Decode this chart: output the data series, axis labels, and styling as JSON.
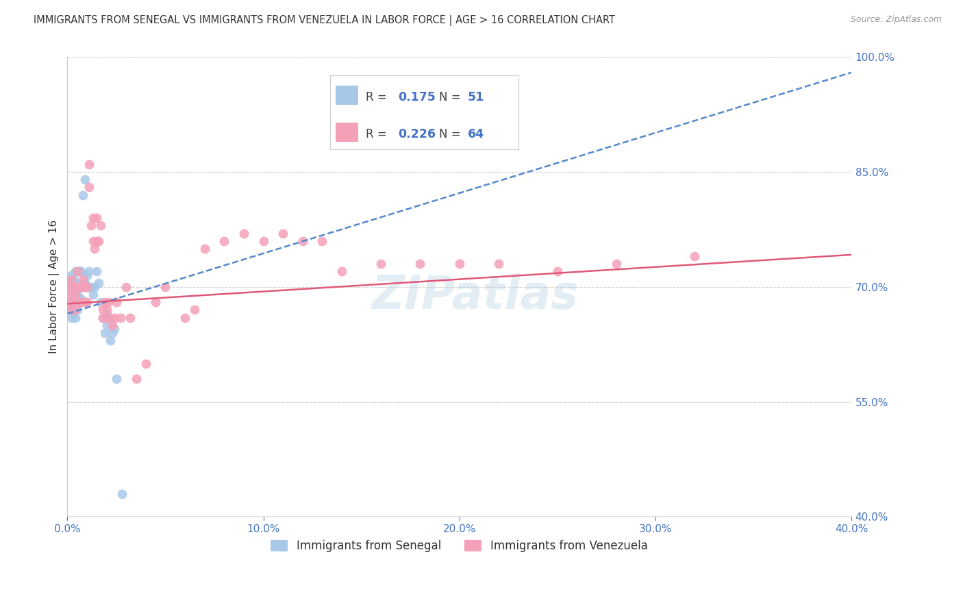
{
  "title": "IMMIGRANTS FROM SENEGAL VS IMMIGRANTS FROM VENEZUELA IN LABOR FORCE | AGE > 16 CORRELATION CHART",
  "source": "Source: ZipAtlas.com",
  "ylabel": "In Labor Force | Age > 16",
  "xlim": [
    0.0,
    0.4
  ],
  "ylim": [
    0.4,
    1.0
  ],
  "xticks": [
    0.0,
    0.1,
    0.2,
    0.3,
    0.4
  ],
  "yticks": [
    0.4,
    0.55,
    0.7,
    0.85,
    1.0
  ],
  "ytick_labels": [
    "40.0%",
    "55.0%",
    "70.0%",
    "85.0%",
    "100.0%"
  ],
  "xtick_labels": [
    "0.0%",
    "10.0%",
    "20.0%",
    "30.0%",
    "40.0%"
  ],
  "background_color": "#ffffff",
  "grid_color": "#d0d0d0",
  "watermark": "ZIPatlas",
  "senegal": {
    "color": "#a8c8e8",
    "R": 0.175,
    "N": 51,
    "line_color": "#5588cc",
    "line_style": "--",
    "x": [
      0.001,
      0.001,
      0.001,
      0.002,
      0.002,
      0.002,
      0.002,
      0.002,
      0.003,
      0.003,
      0.003,
      0.003,
      0.003,
      0.004,
      0.004,
      0.004,
      0.004,
      0.005,
      0.005,
      0.005,
      0.005,
      0.006,
      0.006,
      0.006,
      0.007,
      0.007,
      0.007,
      0.008,
      0.008,
      0.009,
      0.009,
      0.01,
      0.01,
      0.011,
      0.011,
      0.012,
      0.013,
      0.014,
      0.015,
      0.016,
      0.017,
      0.018,
      0.019,
      0.02,
      0.02,
      0.021,
      0.022,
      0.023,
      0.024,
      0.025,
      0.028
    ],
    "y": [
      0.68,
      0.695,
      0.705,
      0.66,
      0.67,
      0.68,
      0.7,
      0.715,
      0.665,
      0.675,
      0.685,
      0.7,
      0.71,
      0.66,
      0.675,
      0.7,
      0.72,
      0.67,
      0.69,
      0.705,
      0.72,
      0.68,
      0.7,
      0.72,
      0.685,
      0.7,
      0.72,
      0.7,
      0.82,
      0.705,
      0.84,
      0.7,
      0.715,
      0.7,
      0.72,
      0.7,
      0.69,
      0.7,
      0.72,
      0.705,
      0.68,
      0.66,
      0.64,
      0.65,
      0.665,
      0.66,
      0.63,
      0.64,
      0.645,
      0.58,
      0.43
    ]
  },
  "venezuela": {
    "color": "#f4a0b8",
    "R": 0.226,
    "N": 64,
    "line_color": "#e05878",
    "line_style": "-",
    "x": [
      0.001,
      0.001,
      0.002,
      0.002,
      0.002,
      0.003,
      0.003,
      0.004,
      0.004,
      0.005,
      0.005,
      0.006,
      0.006,
      0.007,
      0.007,
      0.008,
      0.009,
      0.009,
      0.01,
      0.01,
      0.011,
      0.011,
      0.012,
      0.013,
      0.013,
      0.014,
      0.015,
      0.015,
      0.016,
      0.017,
      0.018,
      0.018,
      0.019,
      0.02,
      0.02,
      0.021,
      0.022,
      0.023,
      0.024,
      0.025,
      0.027,
      0.03,
      0.032,
      0.035,
      0.04,
      0.045,
      0.05,
      0.06,
      0.065,
      0.07,
      0.08,
      0.09,
      0.1,
      0.11,
      0.12,
      0.13,
      0.14,
      0.16,
      0.18,
      0.2,
      0.22,
      0.25,
      0.28,
      0.32
    ],
    "y": [
      0.68,
      0.7,
      0.67,
      0.69,
      0.71,
      0.68,
      0.7,
      0.67,
      0.69,
      0.7,
      0.72,
      0.68,
      0.7,
      0.68,
      0.7,
      0.71,
      0.68,
      0.7,
      0.68,
      0.7,
      0.86,
      0.83,
      0.78,
      0.76,
      0.79,
      0.75,
      0.76,
      0.79,
      0.76,
      0.78,
      0.66,
      0.67,
      0.68,
      0.66,
      0.67,
      0.68,
      0.66,
      0.65,
      0.66,
      0.68,
      0.66,
      0.7,
      0.66,
      0.58,
      0.6,
      0.68,
      0.7,
      0.66,
      0.67,
      0.75,
      0.76,
      0.77,
      0.76,
      0.77,
      0.76,
      0.76,
      0.72,
      0.73,
      0.73,
      0.73,
      0.73,
      0.72,
      0.73,
      0.74
    ]
  },
  "sen_line": {
    "x0": 0.0,
    "y0": 0.665,
    "x1": 0.4,
    "y1": 0.98
  },
  "ven_line": {
    "x0": 0.0,
    "y0": 0.678,
    "x1": 0.4,
    "y1": 0.742
  }
}
